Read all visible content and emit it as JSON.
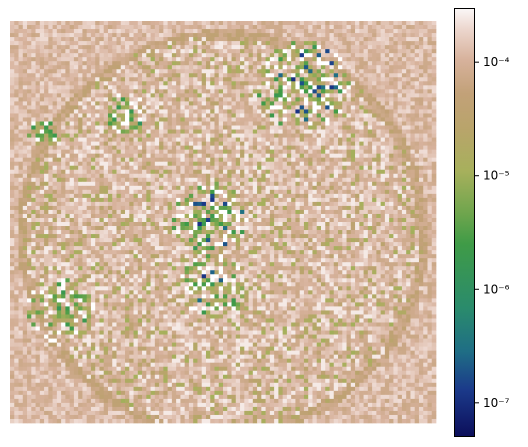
{
  "chart_data": {
    "type": "heatmap",
    "title": "",
    "xlabel": "",
    "ylabel": "",
    "colormap": "gist_earth",
    "color_scale": "log",
    "colorbar_range": [
      5e-08,
      0.0003
    ],
    "colorbar_ticks": [
      {
        "value": 1e-07,
        "label": "10⁻⁷"
      },
      {
        "value": 1e-06,
        "label": "10⁻⁶"
      },
      {
        "value": 1e-05,
        "label": "10⁻⁵"
      },
      {
        "value": 0.0001,
        "label": "10⁻⁴"
      }
    ],
    "grid_size": [
      100,
      100
    ],
    "background_value": 0.00012,
    "disk": {
      "center": [
        0.5,
        0.53
      ],
      "radius": 0.47,
      "rim_value": 6e-05
    },
    "clusters": [
      {
        "center": [
          0.69,
          0.16
        ],
        "radius": 0.11,
        "min_value": 1e-07
      },
      {
        "center": [
          0.47,
          0.49
        ],
        "radius": 0.09,
        "min_value": 1e-07
      },
      {
        "center": [
          0.48,
          0.66
        ],
        "radius": 0.08,
        "min_value": 1e-07
      },
      {
        "center": [
          0.27,
          0.23
        ],
        "radius": 0.05,
        "min_value": 1e-06
      },
      {
        "center": [
          0.12,
          0.72
        ],
        "radius": 0.08,
        "min_value": 2e-06
      },
      {
        "center": [
          0.08,
          0.28
        ],
        "radius": 0.04,
        "min_value": 3e-06
      }
    ],
    "grid": false,
    "legend": "colorbar-right"
  }
}
